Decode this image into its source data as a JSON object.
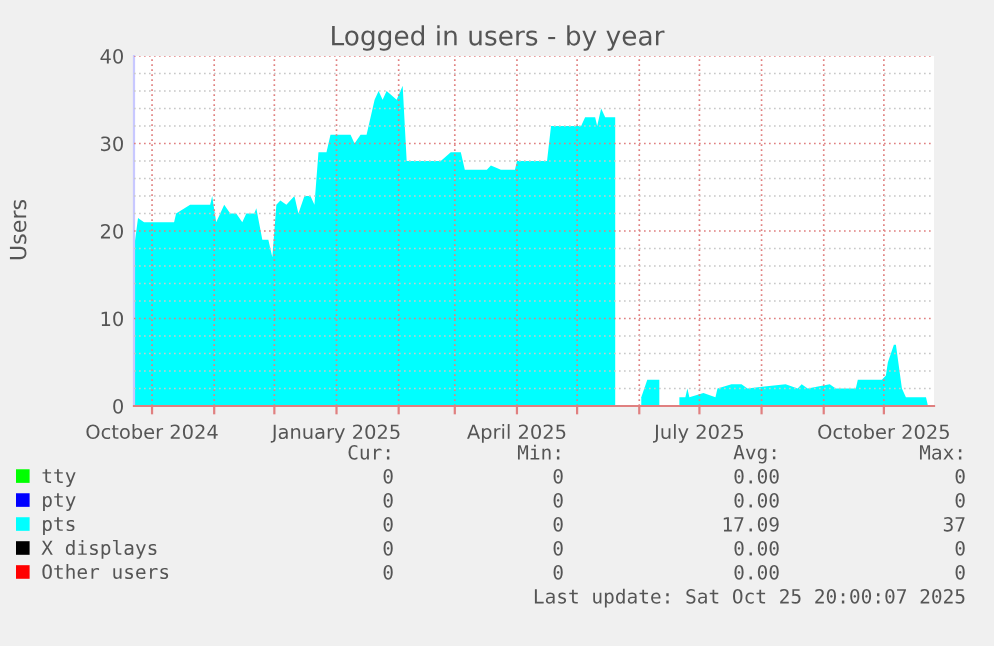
{
  "chart_data": {
    "type": "area",
    "title": "Logged in users - by year",
    "ylabel": "Users",
    "x": [
      "2024-09-22",
      "2024-09-24",
      "2024-09-27",
      "2024-10-12",
      "2024-10-13",
      "2024-10-20",
      "2024-10-30",
      "2024-10-31",
      "2024-11-02",
      "2024-11-06",
      "2024-11-09",
      "2024-11-12",
      "2024-11-15",
      "2024-11-17",
      "2024-11-21",
      "2024-11-22",
      "2024-11-25",
      "2024-11-28",
      "2024-11-30",
      "2024-12-02",
      "2024-12-04",
      "2024-12-07",
      "2024-12-11",
      "2024-12-13",
      "2024-12-16",
      "2024-12-19",
      "2024-12-21",
      "2024-12-23",
      "2024-12-27",
      "2024-12-29",
      "2025-01-08",
      "2025-01-10",
      "2025-01-13",
      "2025-01-16",
      "2025-01-20",
      "2025-01-22",
      "2025-01-24",
      "2025-01-26",
      "2025-01-31",
      "2025-02-03",
      "2025-02-05",
      "2025-02-12",
      "2025-02-22",
      "2025-02-27",
      "2025-03-04",
      "2025-03-06",
      "2025-03-17",
      "2025-03-19",
      "2025-03-24",
      "2025-03-31",
      "2025-04-01",
      "2025-04-16",
      "2025-04-18",
      "2025-05-03",
      "2025-05-05",
      "2025-05-10",
      "2025-05-11",
      "2025-05-13",
      "2025-05-15",
      "2025-05-20",
      "2025-05-21",
      "2025-06-02",
      "2025-06-05",
      "2025-06-11",
      "2025-06-12",
      "2025-06-21",
      "2025-06-24",
      "2025-06-25",
      "2025-06-26",
      "2025-07-03",
      "2025-07-09",
      "2025-07-10",
      "2025-07-17",
      "2025-07-22",
      "2025-07-25",
      "2025-08-13",
      "2025-08-19",
      "2025-08-21",
      "2025-08-24",
      "2025-09-04",
      "2025-09-07",
      "2025-09-17",
      "2025-09-18",
      "2025-09-30",
      "2025-10-02",
      "2025-10-03",
      "2025-10-06",
      "2025-10-07",
      "2025-10-10",
      "2025-10-12",
      "2025-10-22",
      "2025-10-23"
    ],
    "series": [
      {
        "name": "tty",
        "color": "#00ff00",
        "values": [
          null,
          null,
          null,
          null,
          null,
          null,
          null,
          null,
          null,
          null,
          null,
          null,
          null,
          null,
          null,
          null,
          null,
          null,
          null,
          null,
          null,
          null,
          null,
          null,
          null,
          null,
          null,
          null,
          null,
          null,
          null,
          null,
          null,
          null,
          null,
          null,
          null,
          null,
          null,
          null,
          null,
          null,
          null,
          null,
          null,
          null,
          null,
          null,
          null,
          null,
          null,
          null,
          null,
          null,
          null,
          null,
          null,
          null,
          null,
          null,
          null,
          null,
          null,
          null,
          null,
          null,
          null,
          null,
          null,
          null,
          null,
          null,
          null,
          null,
          null,
          null,
          null,
          null,
          null,
          null,
          null,
          null,
          null,
          null,
          null,
          null,
          null,
          null,
          null,
          null,
          null,
          null
        ]
      },
      {
        "name": "pty",
        "color": "#0000ff",
        "values": [
          null,
          null,
          null,
          null,
          null,
          null,
          null,
          null,
          null,
          null,
          null,
          null,
          null,
          null,
          null,
          null,
          null,
          null,
          null,
          null,
          null,
          null,
          null,
          null,
          null,
          null,
          null,
          null,
          null,
          null,
          null,
          null,
          null,
          null,
          null,
          null,
          null,
          null,
          null,
          null,
          null,
          null,
          null,
          null,
          null,
          null,
          null,
          null,
          null,
          null,
          null,
          null,
          null,
          null,
          null,
          null,
          null,
          null,
          null,
          null,
          null,
          null,
          null,
          null,
          null,
          null,
          null,
          null,
          null,
          null,
          null,
          null,
          null,
          null,
          null,
          null,
          null,
          null,
          null,
          null,
          null,
          null,
          null,
          null,
          null,
          null,
          null,
          null,
          null,
          null,
          null,
          null
        ]
      },
      {
        "name": "pts",
        "color": "#00ffff",
        "values": [
          18,
          21.5,
          21,
          21,
          22,
          23,
          23,
          24,
          21,
          23,
          22,
          22,
          21,
          22,
          22,
          22.6,
          19,
          19,
          17,
          23,
          23.5,
          23,
          24,
          22,
          24,
          24,
          23,
          29,
          29,
          31,
          31,
          30,
          31,
          31,
          35,
          36,
          35,
          36,
          35,
          36.6,
          28,
          28,
          28,
          29,
          29,
          27,
          27,
          27.5,
          27,
          27,
          28,
          28,
          32,
          32,
          33,
          33,
          32,
          34,
          33,
          33,
          null,
          1,
          3,
          3,
          null,
          1,
          1,
          2,
          1,
          1.5,
          1,
          2,
          2.5,
          2.5,
          2,
          2.5,
          2,
          2.5,
          2,
          2.5,
          2,
          2,
          3,
          3,
          3.5,
          5,
          7,
          7,
          2,
          1,
          1,
          0
        ]
      },
      {
        "name": "X displays",
        "color": "#000000",
        "values": [
          null,
          null,
          null,
          null,
          null,
          null,
          null,
          null,
          null,
          null,
          null,
          null,
          null,
          null,
          null,
          null,
          null,
          null,
          null,
          null,
          null,
          null,
          null,
          null,
          null,
          null,
          null,
          null,
          null,
          null,
          null,
          null,
          null,
          null,
          null,
          null,
          null,
          null,
          null,
          null,
          null,
          null,
          null,
          null,
          null,
          null,
          null,
          null,
          null,
          null,
          null,
          null,
          null,
          null,
          null,
          null,
          null,
          null,
          null,
          null,
          null,
          null,
          null,
          null,
          null,
          null,
          null,
          null,
          null,
          null,
          null,
          null,
          null,
          null,
          null,
          null,
          null,
          null,
          null,
          null,
          null,
          null,
          null,
          null,
          null,
          null,
          null,
          null,
          null,
          null,
          null,
          null
        ]
      },
      {
        "name": "Other users",
        "color": "#ff0000",
        "values": [
          null,
          null,
          null,
          null,
          null,
          null,
          null,
          null,
          null,
          null,
          null,
          null,
          null,
          null,
          null,
          null,
          null,
          null,
          null,
          null,
          null,
          null,
          null,
          null,
          null,
          null,
          null,
          null,
          null,
          null,
          null,
          null,
          null,
          null,
          null,
          null,
          null,
          null,
          null,
          null,
          null,
          null,
          null,
          null,
          null,
          null,
          null,
          null,
          null,
          null,
          null,
          null,
          null,
          null,
          null,
          null,
          null,
          null,
          null,
          null,
          null,
          null,
          null,
          null,
          null,
          null,
          null,
          null,
          null,
          null,
          null,
          null,
          null,
          null,
          null,
          null,
          null,
          null,
          null,
          null,
          null,
          null,
          null,
          null,
          null,
          null,
          null,
          null,
          null,
          null,
          null,
          null
        ]
      }
    ],
    "xlim": [
      "2024-09-22",
      "2025-10-26"
    ],
    "xticks": [
      {
        "value": "2024-10-01",
        "label": "October 2024"
      },
      {
        "value": "2024-11-01",
        "label": null
      },
      {
        "value": "2024-12-01",
        "label": null
      },
      {
        "value": "2025-01-01",
        "label": "January 2025"
      },
      {
        "value": "2025-02-01",
        "label": null
      },
      {
        "value": "2025-03-01",
        "label": null
      },
      {
        "value": "2025-04-01",
        "label": "April 2025"
      },
      {
        "value": "2025-05-01",
        "label": null
      },
      {
        "value": "2025-06-01",
        "label": null
      },
      {
        "value": "2025-07-01",
        "label": "July 2025"
      },
      {
        "value": "2025-08-01",
        "label": null
      },
      {
        "value": "2025-09-01",
        "label": null
      },
      {
        "value": "2025-10-01",
        "label": "October 2025"
      }
    ],
    "ylim": [
      0,
      40
    ],
    "yticks": [
      0,
      10,
      20,
      30,
      40
    ],
    "grid": true,
    "legend": "bottom",
    "annotations": [
      "Cur:",
      "Min:",
      "Avg:",
      "Max:",
      "0",
      "0",
      "0.00",
      "0",
      "0",
      "0",
      "0.00",
      "0",
      "0",
      "0",
      "17.09",
      "37",
      "0",
      "0",
      "0.00",
      "0",
      "0",
      "0",
      "0.00",
      "0",
      "Last update: Sat Oct 25 20:00:07 2025"
    ]
  }
}
